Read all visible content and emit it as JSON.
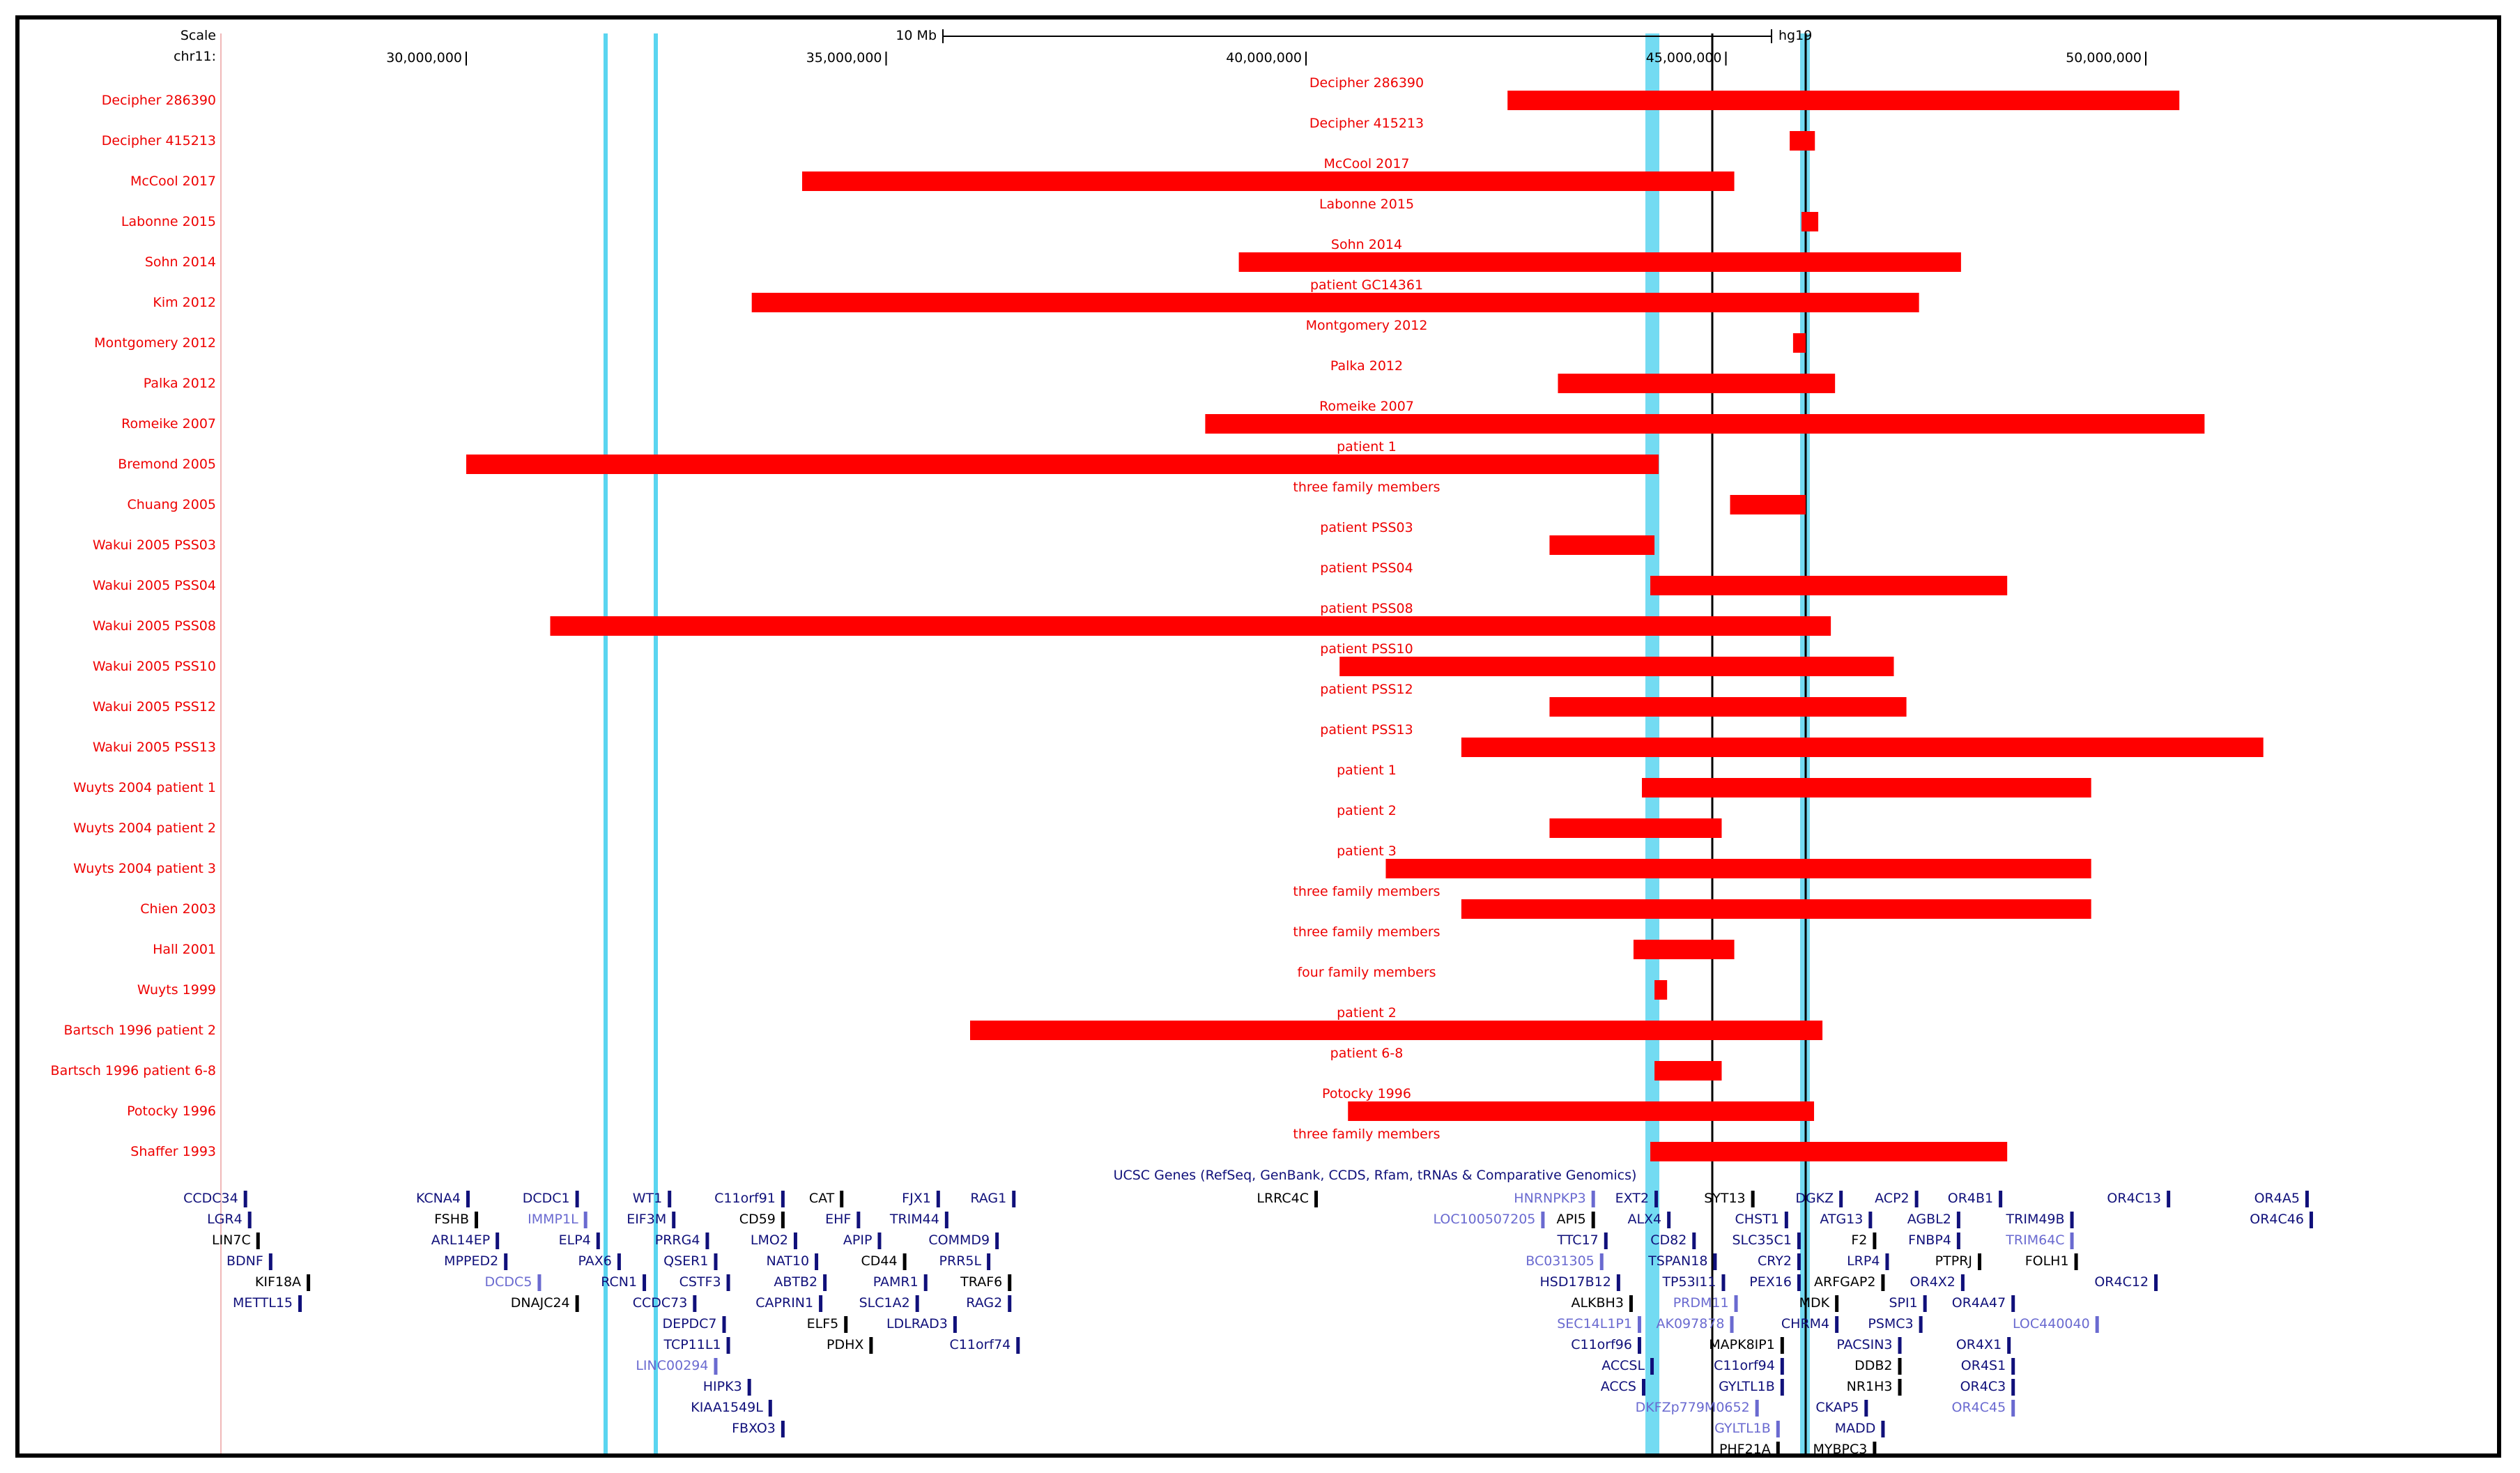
{
  "header": {
    "scale_label": "Scale",
    "chr_label": "chr11:",
    "scalebar_label": "10 Mb",
    "assembly_label": "hg19",
    "ticks": [
      "30,000,000",
      "35,000,000",
      "40,000,000",
      "45,000,000",
      "50,000,000"
    ]
  },
  "colors": {
    "cnv_red": "#ff0000",
    "highlight_cyan": "#5ad5f0",
    "gene_navy": "#10107a",
    "gene_lightblue": "#6a6ad0",
    "label_red": "#ee0000"
  },
  "tracks": [
    {
      "left_label": "Decipher 286390",
      "center_label": "Decipher 286390",
      "start_mb": 42.4,
      "end_mb": 50.4
    },
    {
      "left_label": "Decipher 415213",
      "center_label": "Decipher 415213",
      "start_mb": 45.76,
      "end_mb": 46.06
    },
    {
      "left_label": "McCool 2017",
      "center_label": "McCool 2017",
      "start_mb": 34.0,
      "end_mb": 45.1
    },
    {
      "left_label": "Labonne 2015",
      "center_label": "Labonne 2015",
      "start_mb": 45.9,
      "end_mb": 46.1
    },
    {
      "left_label": "Sohn 2014",
      "center_label": "Sohn 2014",
      "start_mb": 39.2,
      "end_mb": 47.8
    },
    {
      "left_label": "Kim 2012",
      "center_label": "patient GC14361",
      "start_mb": 33.4,
      "end_mb": 47.3
    },
    {
      "left_label": "Montgomery 2012",
      "center_label": "Montgomery 2012",
      "start_mb": 45.8,
      "end_mb": 45.95
    },
    {
      "left_label": "Palka 2012",
      "center_label": "Palka 2012",
      "start_mb": 43.0,
      "end_mb": 46.3
    },
    {
      "left_label": "Romeike 2007",
      "center_label": "Romeike 2007",
      "start_mb": 38.8,
      "end_mb": 50.7
    },
    {
      "left_label": "Bremond 2005",
      "center_label": "patient 1",
      "start_mb": 30.0,
      "end_mb": 44.2
    },
    {
      "left_label": "Chuang 2005",
      "center_label": "three family members",
      "start_mb": 45.05,
      "end_mb": 45.95
    },
    {
      "left_label": "Wakui 2005 PSS03",
      "center_label": "patient PSS03",
      "start_mb": 42.9,
      "end_mb": 44.15
    },
    {
      "left_label": "Wakui 2005 PSS04",
      "center_label": "patient PSS04",
      "start_mb": 44.1,
      "end_mb": 48.35
    },
    {
      "left_label": "Wakui 2005 PSS08",
      "center_label": "patient PSS08",
      "start_mb": 31.0,
      "end_mb": 46.25
    },
    {
      "left_label": "Wakui 2005 PSS10",
      "center_label": "patient PSS10",
      "start_mb": 40.4,
      "end_mb": 47.0
    },
    {
      "left_label": "Wakui 2005 PSS12",
      "center_label": "patient PSS12",
      "start_mb": 42.9,
      "end_mb": 47.15
    },
    {
      "left_label": "Wakui 2005 PSS13",
      "center_label": "patient PSS13",
      "start_mb": 41.85,
      "end_mb": 51.4
    },
    {
      "left_label": "Wuyts 2004 patient 1",
      "center_label": "patient 1",
      "start_mb": 44.0,
      "end_mb": 49.35
    },
    {
      "left_label": "Wuyts 2004 patient 2",
      "center_label": "patient 2",
      "start_mb": 42.9,
      "end_mb": 44.95
    },
    {
      "left_label": "Wuyts 2004  patient 3",
      "center_label": "patient 3",
      "start_mb": 40.95,
      "end_mb": 49.35
    },
    {
      "left_label": "Chien 2003",
      "center_label": "three family members",
      "start_mb": 41.85,
      "end_mb": 49.35
    },
    {
      "left_label": "Hall 2001",
      "center_label": "three family members",
      "start_mb": 43.9,
      "end_mb": 45.1
    },
    {
      "left_label": "Wuyts 1999",
      "center_label": "four family members",
      "start_mb": 44.15,
      "end_mb": 44.3
    },
    {
      "left_label": "Bartsch 1996 patient 2",
      "center_label": "patient 2",
      "start_mb": 36.0,
      "end_mb": 46.15
    },
    {
      "left_label": "Bartsch 1996 patient 6-8",
      "center_label": "patient 6-8",
      "start_mb": 44.15,
      "end_mb": 44.95
    },
    {
      "left_label": "Potocky 1996",
      "center_label": "Potocky 1996",
      "start_mb": 40.5,
      "end_mb": 46.05
    },
    {
      "left_label": "Shaffer 1993",
      "center_label": "three family members",
      "start_mb": 44.1,
      "end_mb": 48.35
    }
  ],
  "genes_track_title": "UCSC Genes (RefSeq, GenBank, CCDS, Rfam, tRNAs & Comparative Genomics)",
  "gene_rows": [
    [
      {
        "name": "CCDC34",
        "mb": 27.35,
        "tone": "navy"
      },
      {
        "name": "KCNA4",
        "mb": 30.0,
        "tone": "navy"
      },
      {
        "name": "DCDC1",
        "mb": 31.3,
        "tone": "navy"
      },
      {
        "name": "WT1",
        "mb": 32.4,
        "tone": "navy"
      },
      {
        "name": "C11orf91",
        "mb": 33.75,
        "tone": "navy"
      },
      {
        "name": "CAT",
        "mb": 34.45,
        "tone": "black"
      },
      {
        "name": "FJX1",
        "mb": 35.6,
        "tone": "navy"
      },
      {
        "name": "RAG1",
        "mb": 36.5,
        "tone": "navy"
      },
      {
        "name": "LRRC4C",
        "mb": 40.1,
        "tone": "black"
      },
      {
        "name": "HNRNPKP3",
        "mb": 43.4,
        "tone": "light"
      },
      {
        "name": "EXT2",
        "mb": 44.15,
        "tone": "navy"
      },
      {
        "name": "SYT13",
        "mb": 45.3,
        "tone": "black"
      },
      {
        "name": "DGKZ",
        "mb": 46.35,
        "tone": "navy"
      },
      {
        "name": "ACP2",
        "mb": 47.25,
        "tone": "navy"
      },
      {
        "name": "OR4B1",
        "mb": 48.25,
        "tone": "navy"
      },
      {
        "name": "OR4C13",
        "mb": 50.25,
        "tone": "navy"
      },
      {
        "name": "OR4A5",
        "mb": 51.9,
        "tone": "navy"
      }
    ],
    [
      {
        "name": "LGR4",
        "mb": 27.4,
        "tone": "navy"
      },
      {
        "name": "FSHB",
        "mb": 30.1,
        "tone": "black"
      },
      {
        "name": "IMMP1L",
        "mb": 31.4,
        "tone": "light"
      },
      {
        "name": "EIF3M",
        "mb": 32.45,
        "tone": "navy"
      },
      {
        "name": "CD59",
        "mb": 33.75,
        "tone": "black"
      },
      {
        "name": "EHF",
        "mb": 34.65,
        "tone": "navy"
      },
      {
        "name": "TRIM44",
        "mb": 35.7,
        "tone": "navy"
      },
      {
        "name": "LOC100507205",
        "mb": 42.8,
        "tone": "light"
      },
      {
        "name": "API5",
        "mb": 43.4,
        "tone": "black"
      },
      {
        "name": "ALX4",
        "mb": 44.3,
        "tone": "navy"
      },
      {
        "name": "CHST1",
        "mb": 45.7,
        "tone": "navy"
      },
      {
        "name": "ATG13",
        "mb": 46.7,
        "tone": "navy"
      },
      {
        "name": "AGBL2",
        "mb": 47.75,
        "tone": "navy"
      },
      {
        "name": "TRIM49B",
        "mb": 49.1,
        "tone": "navy"
      },
      {
        "name": "OR4C46",
        "mb": 51.95,
        "tone": "navy"
      }
    ],
    [
      {
        "name": "LIN7C",
        "mb": 27.5,
        "tone": "black"
      },
      {
        "name": "ARL14EP",
        "mb": 30.35,
        "tone": "navy"
      },
      {
        "name": "ELP4",
        "mb": 31.55,
        "tone": "navy"
      },
      {
        "name": "PRRG4",
        "mb": 32.85,
        "tone": "navy"
      },
      {
        "name": "LMO2",
        "mb": 33.9,
        "tone": "navy"
      },
      {
        "name": "APIP",
        "mb": 34.9,
        "tone": "navy"
      },
      {
        "name": "COMMD9",
        "mb": 36.3,
        "tone": "navy"
      },
      {
        "name": "TTC17",
        "mb": 43.55,
        "tone": "navy"
      },
      {
        "name": "CD82",
        "mb": 44.6,
        "tone": "navy"
      },
      {
        "name": "SLC35C1",
        "mb": 45.85,
        "tone": "navy"
      },
      {
        "name": "F2",
        "mb": 46.75,
        "tone": "black"
      },
      {
        "name": "FNBP4",
        "mb": 47.75,
        "tone": "navy"
      },
      {
        "name": "TRIM64C",
        "mb": 49.1,
        "tone": "light"
      }
    ],
    [
      {
        "name": "BDNF",
        "mb": 27.65,
        "tone": "navy"
      },
      {
        "name": "MPPED2",
        "mb": 30.45,
        "tone": "navy"
      },
      {
        "name": "PAX6",
        "mb": 31.8,
        "tone": "navy"
      },
      {
        "name": "QSER1",
        "mb": 32.95,
        "tone": "navy"
      },
      {
        "name": "NAT10",
        "mb": 34.15,
        "tone": "navy"
      },
      {
        "name": "CD44",
        "mb": 35.2,
        "tone": "black"
      },
      {
        "name": "PRR5L",
        "mb": 36.2,
        "tone": "navy"
      },
      {
        "name": "BC031305",
        "mb": 43.5,
        "tone": "light"
      },
      {
        "name": "TSPAN18",
        "mb": 44.85,
        "tone": "navy"
      },
      {
        "name": "CRY2",
        "mb": 45.85,
        "tone": "navy"
      },
      {
        "name": "LRP4",
        "mb": 46.9,
        "tone": "navy"
      },
      {
        "name": "PTPRJ",
        "mb": 48.0,
        "tone": "black"
      },
      {
        "name": "FOLH1",
        "mb": 49.15,
        "tone": "black"
      }
    ],
    [
      {
        "name": "KIF18A",
        "mb": 28.1,
        "tone": "black"
      },
      {
        "name": "DCDC5",
        "mb": 30.85,
        "tone": "light"
      },
      {
        "name": "RCN1",
        "mb": 32.1,
        "tone": "navy"
      },
      {
        "name": "CSTF3",
        "mb": 33.1,
        "tone": "navy"
      },
      {
        "name": "ABTB2",
        "mb": 34.25,
        "tone": "navy"
      },
      {
        "name": "PAMR1",
        "mb": 35.45,
        "tone": "navy"
      },
      {
        "name": "TRAF6",
        "mb": 36.45,
        "tone": "black"
      },
      {
        "name": "HSD17B12",
        "mb": 43.7,
        "tone": "navy"
      },
      {
        "name": "TP53I11",
        "mb": 44.95,
        "tone": "navy"
      },
      {
        "name": "PEX16",
        "mb": 45.85,
        "tone": "navy"
      },
      {
        "name": "ARFGAP2",
        "mb": 46.85,
        "tone": "black"
      },
      {
        "name": "OR4X2",
        "mb": 47.8,
        "tone": "navy"
      },
      {
        "name": "OR4C12",
        "mb": 50.1,
        "tone": "navy"
      }
    ],
    [
      {
        "name": "METTL15",
        "mb": 28.0,
        "tone": "navy"
      },
      {
        "name": "DNAJC24",
        "mb": 31.3,
        "tone": "black"
      },
      {
        "name": "CCDC73",
        "mb": 32.7,
        "tone": "navy"
      },
      {
        "name": "CAPRIN1",
        "mb": 34.2,
        "tone": "navy"
      },
      {
        "name": "SLC1A2",
        "mb": 35.35,
        "tone": "navy"
      },
      {
        "name": "RAG2",
        "mb": 36.45,
        "tone": "navy"
      },
      {
        "name": "ALKBH3",
        "mb": 43.85,
        "tone": "black"
      },
      {
        "name": "PRDM11",
        "mb": 45.1,
        "tone": "light"
      },
      {
        "name": "MDK",
        "mb": 46.3,
        "tone": "black"
      },
      {
        "name": "SPI1",
        "mb": 47.35,
        "tone": "navy"
      },
      {
        "name": "OR4A47",
        "mb": 48.4,
        "tone": "navy"
      }
    ],
    [
      {
        "name": "DEPDC7",
        "mb": 33.05,
        "tone": "navy"
      },
      {
        "name": "ELF5",
        "mb": 34.5,
        "tone": "black"
      },
      {
        "name": "LDLRAD3",
        "mb": 35.8,
        "tone": "navy"
      },
      {
        "name": "SEC14L1P1",
        "mb": 43.95,
        "tone": "light"
      },
      {
        "name": "AK097878",
        "mb": 45.05,
        "tone": "light"
      },
      {
        "name": "CHRM4",
        "mb": 46.3,
        "tone": "navy"
      },
      {
        "name": "PSMC3",
        "mb": 47.3,
        "tone": "navy"
      },
      {
        "name": "LOC440040",
        "mb": 49.4,
        "tone": "light"
      }
    ],
    [
      {
        "name": "TCP11L1",
        "mb": 33.1,
        "tone": "navy"
      },
      {
        "name": "PDHX",
        "mb": 34.8,
        "tone": "black"
      },
      {
        "name": "C11orf74",
        "mb": 36.55,
        "tone": "navy"
      },
      {
        "name": "C11orf96",
        "mb": 43.95,
        "tone": "navy"
      },
      {
        "name": "MAPK8IP1",
        "mb": 45.65,
        "tone": "black"
      },
      {
        "name": "PACSIN3",
        "mb": 47.05,
        "tone": "navy"
      },
      {
        "name": "OR4X1",
        "mb": 48.35,
        "tone": "navy"
      }
    ],
    [
      {
        "name": "LINC00294",
        "mb": 32.95,
        "tone": "light"
      },
      {
        "name": "ACCSL",
        "mb": 44.1,
        "tone": "navy"
      },
      {
        "name": "C11orf94",
        "mb": 45.65,
        "tone": "navy"
      },
      {
        "name": "DDB2",
        "mb": 47.05,
        "tone": "black"
      },
      {
        "name": "OR4S1",
        "mb": 48.4,
        "tone": "navy"
      }
    ],
    [
      {
        "name": "HIPK3",
        "mb": 33.35,
        "tone": "navy"
      },
      {
        "name": "ACCS",
        "mb": 44.0,
        "tone": "navy"
      },
      {
        "name": "GYLTL1B",
        "mb": 45.65,
        "tone": "navy"
      },
      {
        "name": "NR1H3",
        "mb": 47.05,
        "tone": "black"
      },
      {
        "name": "OR4C3",
        "mb": 48.4,
        "tone": "navy"
      }
    ],
    [
      {
        "name": "KIAA1549L",
        "mb": 33.6,
        "tone": "navy"
      },
      {
        "name": "DKFZp779M0652",
        "mb": 45.35,
        "tone": "light"
      },
      {
        "name": "CKAP5",
        "mb": 46.65,
        "tone": "navy"
      },
      {
        "name": "OR4C45",
        "mb": 48.4,
        "tone": "light"
      }
    ],
    [
      {
        "name": "FBXO3",
        "mb": 33.75,
        "tone": "navy"
      },
      {
        "name": "GYLTL1B",
        "mb": 45.6,
        "tone": "light"
      },
      {
        "name": "MADD",
        "mb": 46.85,
        "tone": "navy"
      }
    ],
    [
      {
        "name": "PHF21A",
        "mb": 45.6,
        "tone": "black"
      },
      {
        "name": "MYBPC3",
        "mb": 46.75,
        "tone": "black"
      }
    ]
  ]
}
